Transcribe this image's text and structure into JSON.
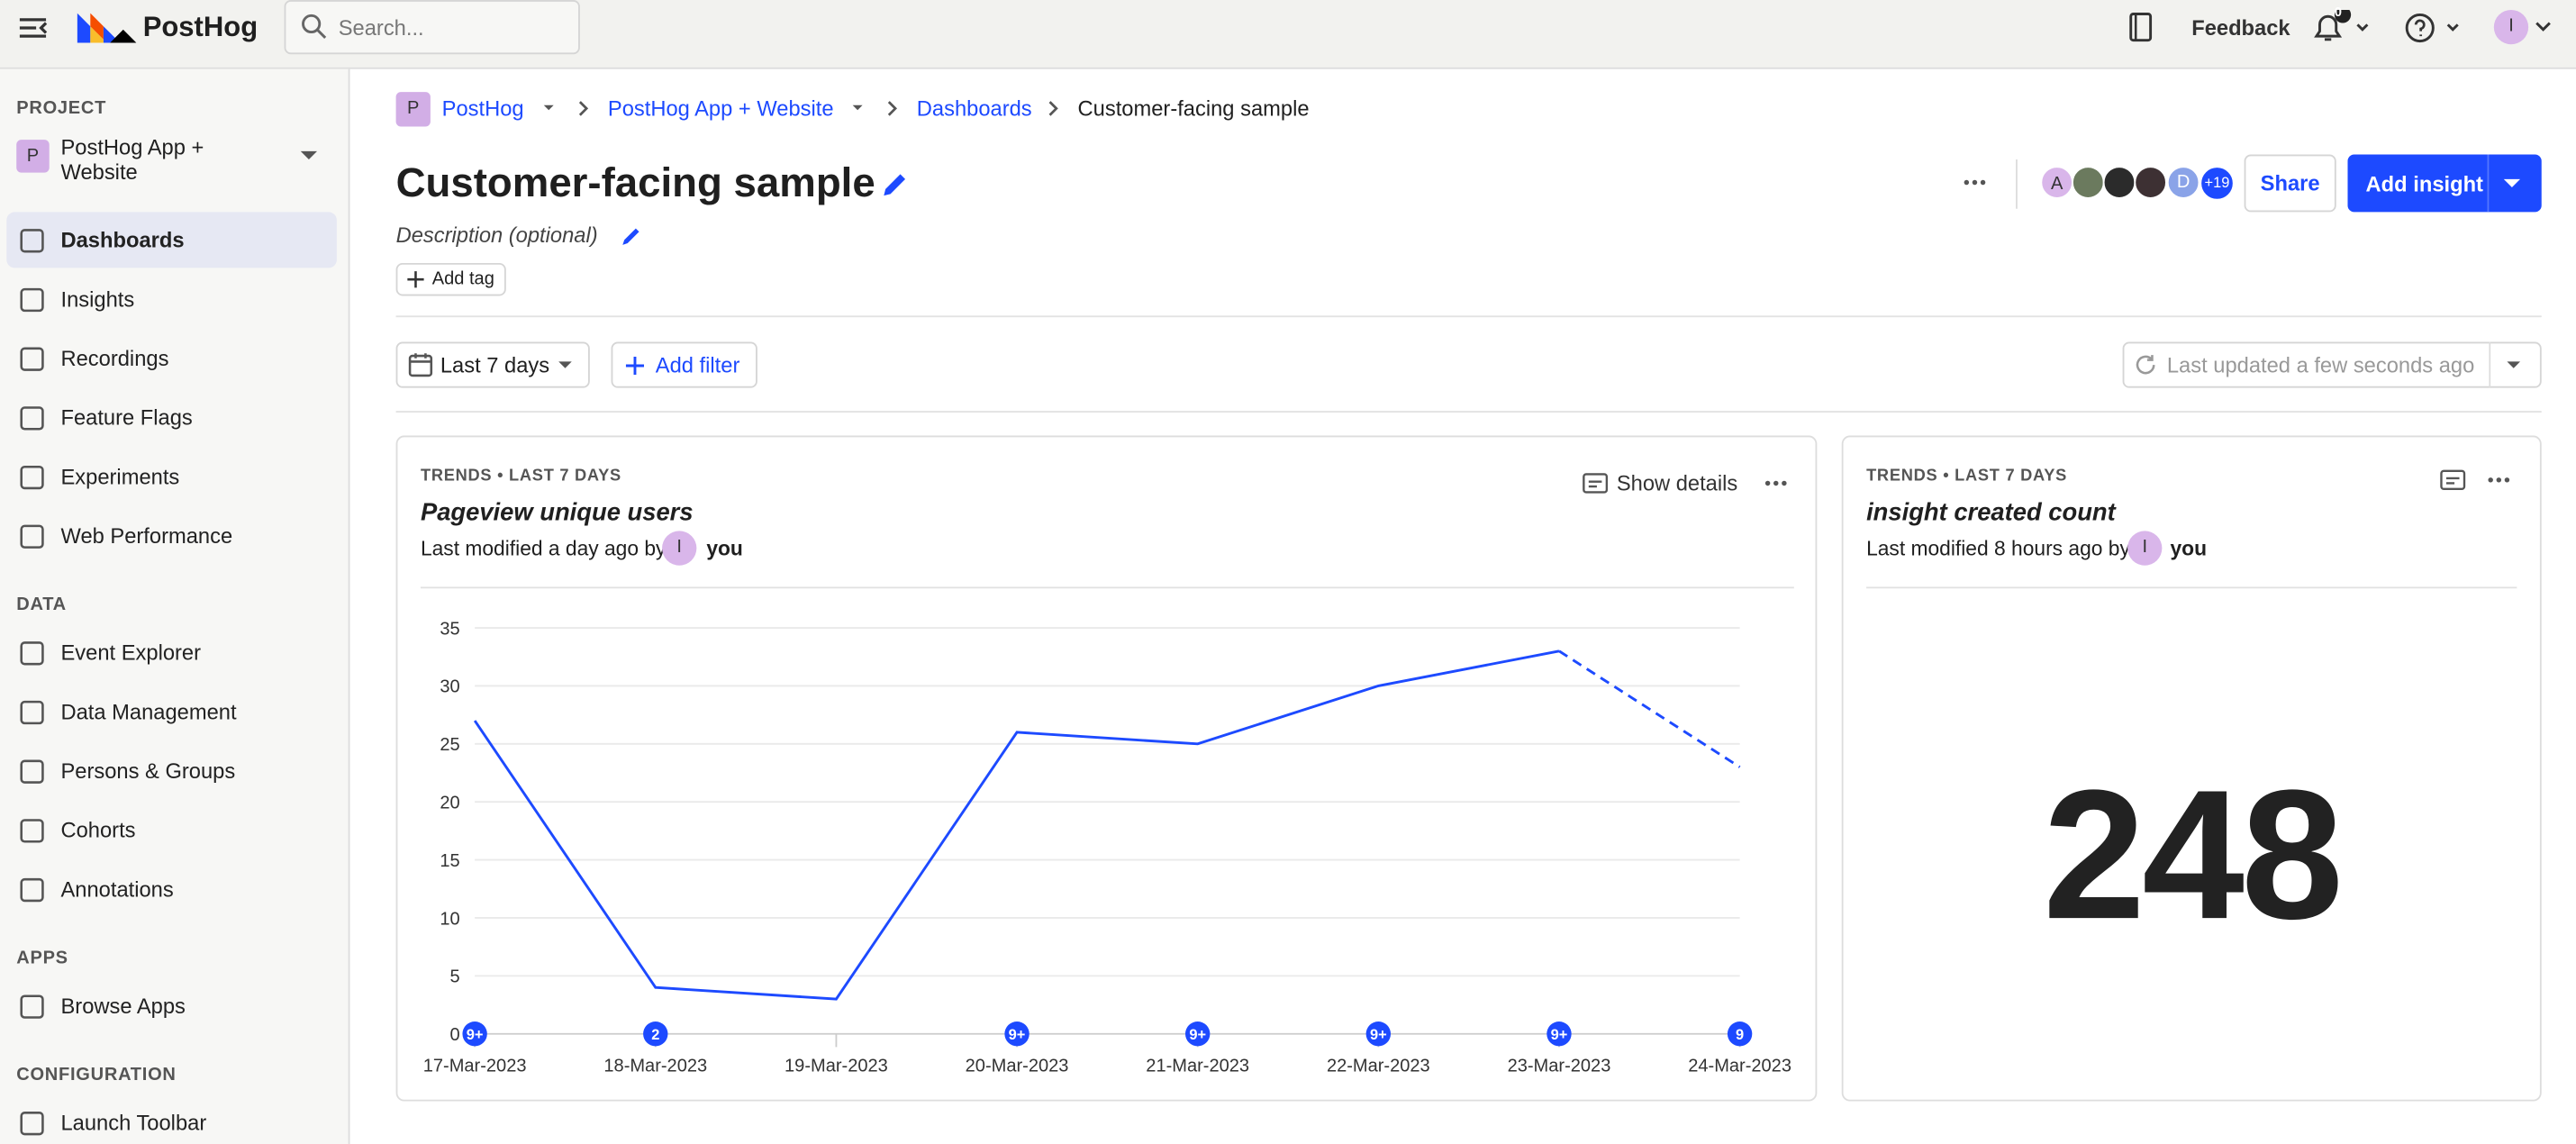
{
  "topbar": {
    "brand": "PostHog",
    "search_placeholder": "Search...",
    "feedback": "Feedback",
    "notifications": "0",
    "user_initial": "I"
  },
  "sidebar": {
    "project_label": "PROJECT",
    "project_initial": "P",
    "project_name": "PostHog App + Website",
    "nav": [
      "Dashboards",
      "Insights",
      "Recordings",
      "Feature Flags",
      "Experiments",
      "Web Performance"
    ],
    "data_label": "DATA",
    "data_items": [
      "Event Explorer",
      "Data Management",
      "Persons & Groups",
      "Cohorts",
      "Annotations"
    ],
    "apps_label": "APPS",
    "apps_items": [
      "Browse Apps"
    ],
    "config_label": "CONFIGURATION",
    "config_items": [
      "Launch Toolbar"
    ]
  },
  "breadcrumbs": {
    "initial": "P",
    "items": [
      "PostHog",
      "PostHog App + Website",
      "Dashboards",
      "Customer-facing sample"
    ]
  },
  "dashboard": {
    "title": "Customer-facing sample",
    "description": "Description (optional)",
    "add_tag": "Add tag",
    "date_filter": "Last 7 days",
    "add_filter": "Add filter",
    "last_updated": "Last updated a few seconds ago",
    "avatars": [
      "A",
      "D",
      "+19"
    ],
    "share": "Share",
    "add_insight": "Add insight"
  },
  "tiles": [
    {
      "kicker": "TRENDS • LAST 7 DAYS",
      "name": "Pageview unique users",
      "modified": "Last modified a day ago by",
      "author_initial": "I",
      "author": "you",
      "show_details": "Show details"
    },
    {
      "kicker": "TRENDS • LAST 7 DAYS",
      "name": "insight created count",
      "modified": "Last modified 8 hours ago by",
      "author_initial": "I",
      "author": "you",
      "value": "248"
    }
  ],
  "chart_data": {
    "type": "line",
    "categories": [
      "17-Mar-2023",
      "18-Mar-2023",
      "19-Mar-2023",
      "20-Mar-2023",
      "21-Mar-2023",
      "22-Mar-2023",
      "23-Mar-2023",
      "24-Mar-2023"
    ],
    "series": [
      {
        "name": "Pageview unique users",
        "color": "#1d4aff",
        "values": [
          27,
          4,
          3,
          26,
          25,
          30,
          33,
          23
        ]
      }
    ],
    "incomplete_last_point": true,
    "annotation_labels": [
      "9+",
      "2",
      null,
      "9+",
      "9+",
      "9+",
      "9+",
      "9"
    ],
    "ylim": [
      0,
      35
    ],
    "yticks": [
      0,
      5,
      10,
      15,
      20,
      25,
      30,
      35
    ],
    "grid": true
  }
}
